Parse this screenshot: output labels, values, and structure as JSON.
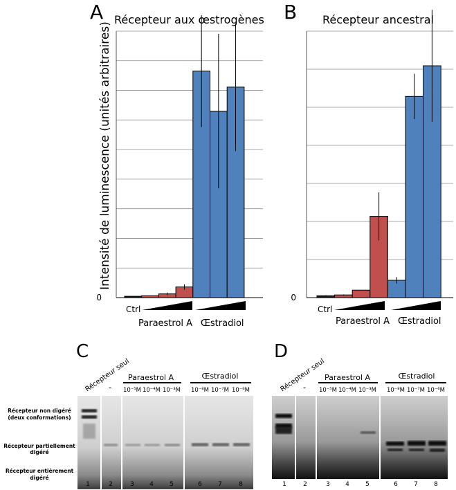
{
  "panels": {
    "A": "A",
    "B": "B",
    "C": "C",
    "D": "D"
  },
  "y_axis_label": "Intensité de luminescence (unités arbitraires)",
  "zero_label": "0",
  "groups": {
    "ctrl": "Ctrl",
    "paraestrol": "Paraestrol A",
    "estradiol": "Œstradiol"
  },
  "colors": {
    "paraestrol": "#c0504d",
    "estradiol": "#4f81bd",
    "ctrl": "#1a1a1a"
  },
  "chart_data": [
    {
      "type": "bar",
      "panel": "A",
      "title": "Récepteur aux œstrogènes",
      "ylim": [
        0,
        10
      ],
      "gridlines": 9,
      "categories": [
        "Ctrl",
        "Paraestrol A 1",
        "Paraestrol A 2",
        "Paraestrol A 3",
        "Œstradiol 1",
        "Œstradiol 2",
        "Œstradiol 3"
      ],
      "values": [
        0.05,
        0.07,
        0.14,
        0.4,
        8.5,
        7.0,
        7.9
      ],
      "errors": [
        0.0,
        0.0,
        0.05,
        0.1,
        2.1,
        2.9,
        2.4
      ],
      "groups": [
        "ctrl",
        "paraestrol",
        "paraestrol",
        "paraestrol",
        "estradiol",
        "estradiol",
        "estradiol"
      ]
    },
    {
      "type": "bar",
      "panel": "B",
      "title": "Récepteur ancestral",
      "ylim": [
        0,
        10
      ],
      "gridlines": 7,
      "categories": [
        "Ctrl",
        "Paraestrol A 1",
        "Paraestrol A 2",
        "Paraestrol A 3",
        "Œstradiol 1",
        "Œstradiol 2",
        "Œstradiol 3"
      ],
      "values": [
        0.07,
        0.1,
        0.28,
        3.05,
        0.65,
        7.55,
        8.7
      ],
      "errors": [
        0.02,
        0.02,
        0.0,
        0.9,
        0.12,
        0.85,
        2.1
      ],
      "groups": [
        "ctrl",
        "paraestrol",
        "paraestrol",
        "paraestrol",
        "estradiol",
        "estradiol",
        "estradiol"
      ]
    }
  ],
  "gels": {
    "row_labels": [
      "Récepteur non digéré",
      "(deux conformations)",
      "Récepteur partiellement",
      "digéré",
      "Récepteur entièrement",
      "digéré"
    ],
    "lane_header": "Récepteur seul",
    "minus": "-",
    "paraestrol_header": "Paraestrol A",
    "estradiol_header": "Œstradiol",
    "para_conc": [
      "10⁻⁵M",
      "10⁻⁴M",
      "10⁻³M"
    ],
    "estr_conc": [
      "10⁻⁸M",
      "10⁻⁷M",
      "10⁻⁶M"
    ],
    "lane_numbers": [
      "1",
      "2",
      "3",
      "4",
      "5",
      "6",
      "7",
      "8"
    ]
  }
}
